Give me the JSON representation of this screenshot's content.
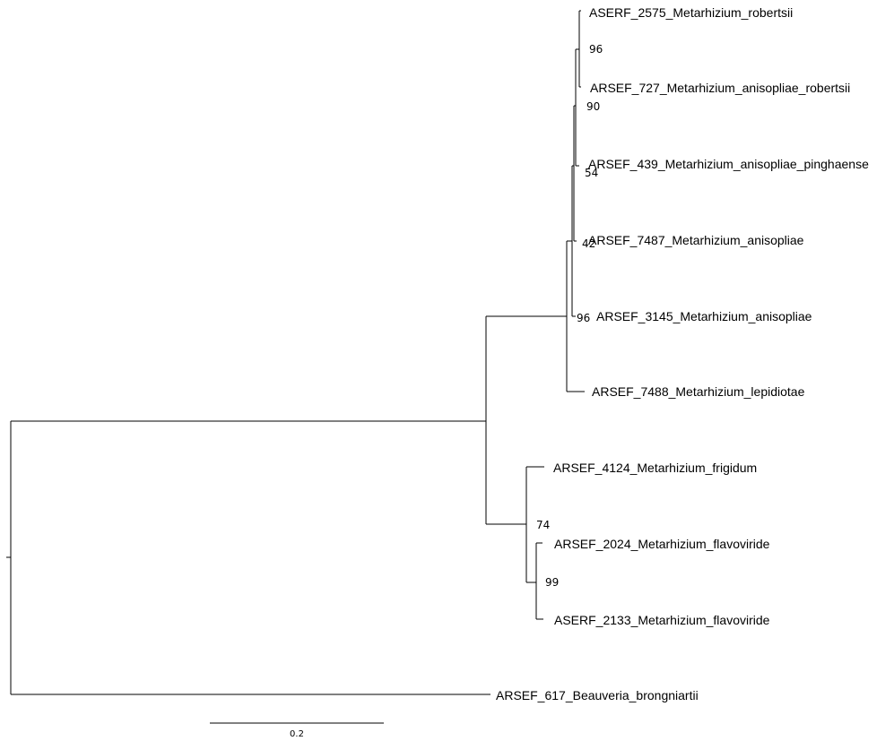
{
  "tree": {
    "taxa": [
      "ASERF_2575_Metarhizium_robertsii",
      "ARSEF_727_Metarhizium_anisopliae_robertsii",
      "ARSEF_439_Metarhizium_anisopliae_pinghaense",
      "ARSEF_7487_Metarhizium_anisopliae",
      "ARSEF_3145_Metarhizium_anisopliae",
      "ARSEF_7488_Metarhizium_lepidiotae",
      "ARSEF_4124_Metarhizium_frigidum",
      "ARSEF_2024_Metarhizium_flavoviride",
      "ASERF_2133_Metarhizium_flavoviride",
      "ARSEF_617_Beauveria_brongniartii"
    ],
    "support_values": [
      "96",
      "90",
      "54",
      "42",
      "96",
      "74",
      "99"
    ],
    "scale_bar": {
      "value": 0.2,
      "label": "0.2"
    }
  }
}
